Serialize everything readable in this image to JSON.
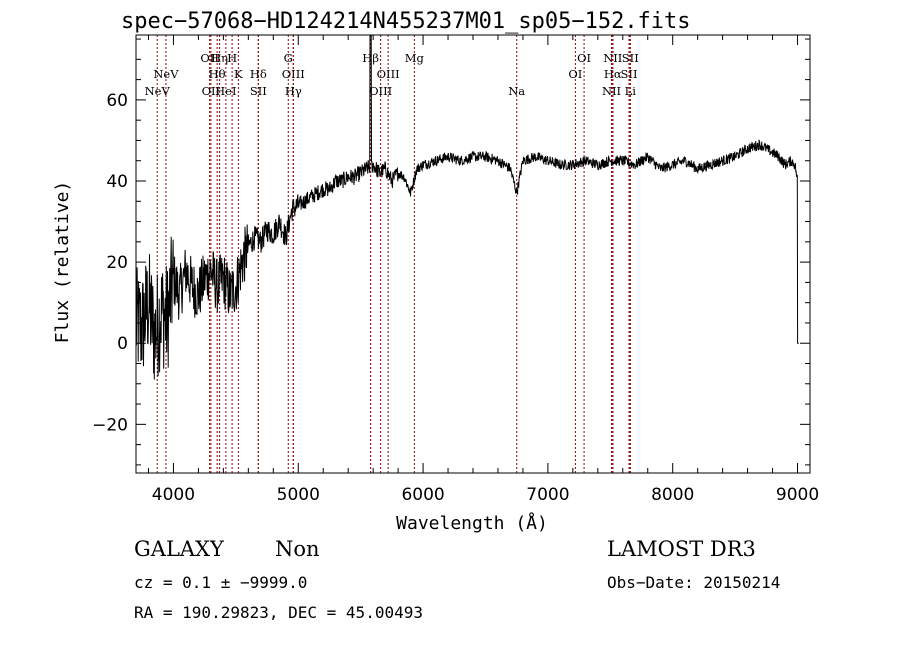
{
  "chart_data": {
    "type": "line",
    "title": "spec−57068−HD124214N455237M01_sp05−152.fits",
    "xlabel": "Wavelength (Å)",
    "ylabel": "Flux (relative)",
    "xlim": [
      3700,
      9100
    ],
    "ylim": [
      -32,
      76
    ],
    "xticks": [
      4000,
      5000,
      6000,
      7000,
      8000,
      9000
    ],
    "yticks": [
      -20,
      0,
      20,
      40,
      60
    ],
    "grid": false,
    "series": [
      {
        "x": [
          3700,
          3750,
          3800,
          3850,
          3900,
          3950,
          4000,
          4050,
          4100,
          4150,
          4200,
          4250,
          4300,
          4350,
          4400,
          4450,
          4500,
          4550,
          4600,
          4650,
          4700,
          4750,
          4800,
          4850,
          4900,
          4950,
          5000,
          5050,
          5100,
          5150,
          5200,
          5250,
          5300,
          5350,
          5400,
          5450,
          5500,
          5550,
          5600,
          5650,
          5700,
          5750,
          5800,
          5850,
          5900,
          5950,
          6000,
          6100,
          6200,
          6300,
          6400,
          6500,
          6600,
          6700,
          6750,
          6800,
          6900,
          7000,
          7100,
          7200,
          7300,
          7400,
          7500,
          7600,
          7700,
          7800,
          7900,
          8000,
          8100,
          8200,
          8300,
          8400,
          8500,
          8600,
          8700,
          8800,
          8850,
          8900,
          8950,
          8980,
          9000,
          9010
        ],
        "values": [
          5,
          4,
          10,
          2,
          8,
          6,
          16,
          12,
          18,
          14,
          12,
          16,
          18,
          14,
          16,
          12,
          14,
          20,
          24,
          26,
          25,
          28,
          27,
          30,
          26,
          33,
          34,
          35,
          36,
          37,
          38,
          38,
          40,
          40,
          41,
          41,
          42,
          43,
          44,
          42,
          43,
          40,
          42,
          41,
          37,
          43,
          44,
          45,
          46,
          45,
          46,
          46,
          45,
          43,
          37,
          45,
          46,
          45,
          44,
          44,
          45,
          44,
          45,
          45,
          44,
          46,
          43,
          44,
          45,
          43,
          44,
          45,
          46,
          48,
          49,
          47,
          46,
          44,
          45,
          44,
          40,
          0
        ]
      }
    ],
    "lines": [
      {
        "label": "NeV",
        "wl": 3870,
        "row": 2
      },
      {
        "label": "NeV",
        "wl": 3940,
        "row": 1
      },
      {
        "label": "OII",
        "wl": 4290,
        "row": 0
      },
      {
        "label": "OII",
        "wl": 4300,
        "row": 2
      },
      {
        "label": "Hη",
        "wl": 4370,
        "row": 0
      },
      {
        "label": "Hθ",
        "wl": 4350,
        "row": 1
      },
      {
        "label": "HeI",
        "wl": 4420,
        "row": 2
      },
      {
        "label": "H",
        "wl": 4470,
        "row": 0
      },
      {
        "label": "K",
        "wl": 4520,
        "row": 1
      },
      {
        "label": "Hδ",
        "wl": 4680,
        "row": 1
      },
      {
        "label": "SII",
        "wl": 4680,
        "row": 2
      },
      {
        "label": "G",
        "wl": 4920,
        "row": 0
      },
      {
        "label": "OIII",
        "wl": 4960,
        "row": 1
      },
      {
        "label": "Hγ",
        "wl": 4960,
        "row": 2
      },
      {
        "label": "Hβ",
        "wl": 5580,
        "row": 0
      },
      {
        "label": "OIII",
        "wl": 5720,
        "row": 1
      },
      {
        "label": "OIII",
        "wl": 5660,
        "row": 2
      },
      {
        "label": "Mg",
        "wl": 5930,
        "row": 0
      },
      {
        "label": "Na",
        "wl": 6750,
        "row": 2
      },
      {
        "label": "OI",
        "wl": 7290,
        "row": 0
      },
      {
        "label": "OI",
        "wl": 7220,
        "row": 1
      },
      {
        "label": "NII",
        "wl": 7520,
        "row": 0
      },
      {
        "label": "SII",
        "wl": 7660,
        "row": 0
      },
      {
        "label": "Hα",
        "wl": 7520,
        "row": 1
      },
      {
        "label": "SII",
        "wl": 7650,
        "row": 1
      },
      {
        "label": "NII",
        "wl": 7510,
        "row": 2
      },
      {
        "label": "Li",
        "wl": 7660,
        "row": 2
      }
    ],
    "line_color": "#8b0000"
  },
  "info": {
    "class": "GALAXY",
    "subclass": "Non",
    "cz": "cz = 0.1 ± −9999.0",
    "radec": "RA = 190.29823, DEC =  45.00493",
    "survey": "LAMOST DR3",
    "obs_date": "Obs−Date: 20150214"
  }
}
